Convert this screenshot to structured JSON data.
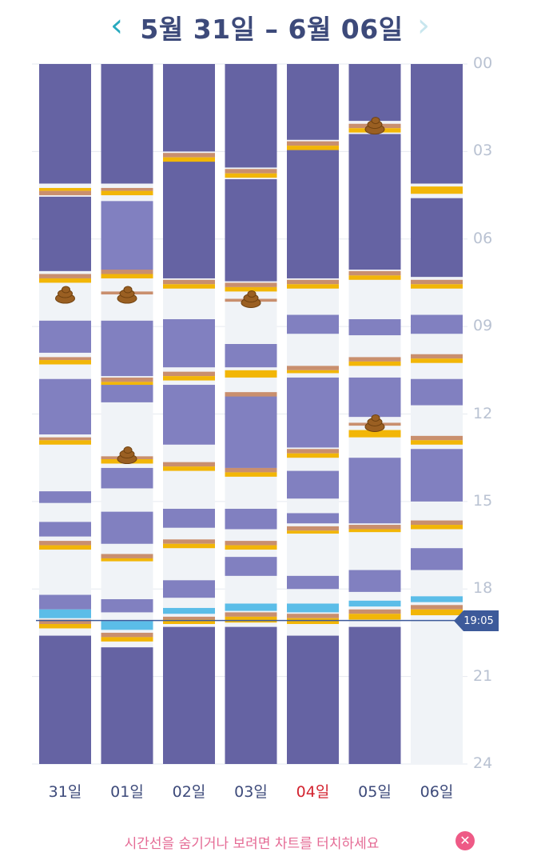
{
  "header": {
    "prev_icon": "chevron-left-icon",
    "next_icon": "chevron-right-icon",
    "title": "5월 31일 – 6월 06일"
  },
  "colors": {
    "sleep": "#6563a3",
    "nap": "#8180c0",
    "awake": "#f0f3f7",
    "feed_orange": "#f2b607",
    "feed_tan": "#c98f6e",
    "diaper_blue": "#5bbde8",
    "now_line": "#3d5a9a"
  },
  "footer": {
    "hint": "시간선을 숨기거나 보려면 차트를 터치하세요",
    "close_icon": "close-icon"
  },
  "now_label": "19:05",
  "chart_data": {
    "type": "timeline",
    "y_unit": "hour",
    "ylim": [
      0,
      24
    ],
    "y_ticks": [
      "00",
      "03",
      "06",
      "09",
      "12",
      "15",
      "18",
      "21",
      "24"
    ],
    "now_hour": 19.08,
    "poop_icon": "poop-icon",
    "days": [
      {
        "label": "31일",
        "highlight": false,
        "sleeps": [
          [
            0,
            4.1
          ],
          [
            4.55,
            7.1
          ],
          [
            8.8,
            9.9
          ],
          [
            10.8,
            12.7
          ],
          [
            14.65,
            15.05
          ],
          [
            15.7,
            16.2
          ],
          [
            18.2,
            18.7
          ],
          [
            19.6,
            24
          ]
        ],
        "feeds": [
          [
            4.25,
            4.35,
            "o"
          ],
          [
            4.35,
            4.5,
            "t"
          ],
          [
            7.2,
            7.35,
            "t"
          ],
          [
            7.35,
            7.5,
            "o"
          ],
          [
            10.05,
            10.15,
            "t"
          ],
          [
            10.15,
            10.3,
            "o"
          ],
          [
            12.8,
            12.9,
            "t"
          ],
          [
            12.9,
            13.05,
            "o"
          ],
          [
            16.35,
            16.5,
            "t"
          ],
          [
            16.5,
            16.65,
            "o"
          ],
          [
            18.7,
            19.0,
            "d"
          ],
          [
            19.05,
            19.2,
            "t"
          ],
          [
            19.2,
            19.35,
            "o"
          ]
        ],
        "poops": [
          7.9
        ]
      },
      {
        "label": "01일",
        "highlight": false,
        "sleeps": [
          [
            0,
            4.1
          ],
          [
            4.7,
            7.1
          ],
          [
            8.8,
            10.7
          ],
          [
            11.0,
            11.6
          ],
          [
            13.85,
            14.55
          ],
          [
            15.35,
            16.45
          ],
          [
            18.35,
            18.8
          ],
          [
            20.0,
            24
          ]
        ],
        "feeds": [
          [
            4.25,
            4.35,
            "t"
          ],
          [
            4.35,
            4.5,
            "o"
          ],
          [
            7.05,
            7.2,
            "t"
          ],
          [
            7.2,
            7.35,
            "o"
          ],
          [
            7.8,
            7.9,
            "t"
          ],
          [
            10.75,
            10.9,
            "t"
          ],
          [
            10.9,
            11.0,
            "o"
          ],
          [
            13.45,
            13.55,
            "t"
          ],
          [
            13.55,
            13.7,
            "o"
          ],
          [
            16.8,
            16.95,
            "t"
          ],
          [
            16.95,
            17.05,
            "o"
          ],
          [
            19.1,
            19.4,
            "d"
          ],
          [
            19.5,
            19.65,
            "t"
          ],
          [
            19.65,
            19.8,
            "o"
          ]
        ],
        "poops": [
          13.4,
          7.9
        ]
      },
      {
        "label": "02일",
        "highlight": false,
        "sleeps": [
          [
            0,
            3.0
          ],
          [
            3.3,
            7.35
          ],
          [
            8.75,
            10.4
          ],
          [
            11.0,
            13.05
          ],
          [
            15.25,
            15.9
          ],
          [
            17.7,
            18.3
          ],
          [
            19.3,
            24
          ]
        ],
        "feeds": [
          [
            3.05,
            3.2,
            "t"
          ],
          [
            3.2,
            3.35,
            "o"
          ],
          [
            7.4,
            7.55,
            "t"
          ],
          [
            7.55,
            7.7,
            "o"
          ],
          [
            10.55,
            10.7,
            "t"
          ],
          [
            10.7,
            10.85,
            "o"
          ],
          [
            13.65,
            13.8,
            "t"
          ],
          [
            13.8,
            13.95,
            "o"
          ],
          [
            16.3,
            16.45,
            "t"
          ],
          [
            16.45,
            16.6,
            "o"
          ],
          [
            18.65,
            18.85,
            "d"
          ],
          [
            18.95,
            19.05,
            "t"
          ],
          [
            19.05,
            19.2,
            "o"
          ]
        ],
        "poops": []
      },
      {
        "label": "03일",
        "highlight": false,
        "sleeps": [
          [
            0,
            3.55
          ],
          [
            3.95,
            7.45
          ],
          [
            9.6,
            10.4
          ],
          [
            11.3,
            13.85
          ],
          [
            15.25,
            15.95
          ],
          [
            16.9,
            17.55
          ],
          [
            19.3,
            24
          ]
        ],
        "feeds": [
          [
            3.6,
            3.75,
            "t"
          ],
          [
            3.75,
            3.9,
            "o"
          ],
          [
            7.5,
            7.65,
            "t"
          ],
          [
            7.65,
            7.8,
            "o"
          ],
          [
            8.05,
            8.15,
            "t"
          ],
          [
            10.5,
            10.75,
            "o"
          ],
          [
            11.25,
            11.4,
            "t"
          ],
          [
            13.85,
            14.0,
            "t"
          ],
          [
            14.0,
            14.15,
            "o"
          ],
          [
            16.35,
            16.5,
            "t"
          ],
          [
            16.5,
            16.65,
            "o"
          ],
          [
            18.5,
            18.75,
            "d"
          ],
          [
            18.8,
            18.95,
            "t"
          ],
          [
            18.95,
            19.15,
            "o"
          ]
        ],
        "poops": [
          8.05
        ]
      },
      {
        "label": "04일",
        "highlight": true,
        "sleeps": [
          [
            0,
            2.6
          ],
          [
            2.95,
            7.35
          ],
          [
            8.6,
            9.25
          ],
          [
            10.75,
            13.15
          ],
          [
            13.95,
            14.9
          ],
          [
            15.4,
            15.75
          ],
          [
            17.55,
            18.0
          ],
          [
            19.6,
            24
          ]
        ],
        "feeds": [
          [
            2.65,
            2.8,
            "t"
          ],
          [
            2.8,
            2.95,
            "o"
          ],
          [
            7.4,
            7.55,
            "t"
          ],
          [
            7.55,
            7.7,
            "o"
          ],
          [
            10.35,
            10.5,
            "t"
          ],
          [
            10.5,
            10.6,
            "o"
          ],
          [
            13.2,
            13.35,
            "t"
          ],
          [
            13.35,
            13.5,
            "o"
          ],
          [
            15.85,
            16.0,
            "t"
          ],
          [
            16.0,
            16.1,
            "o"
          ],
          [
            18.5,
            18.8,
            "d"
          ],
          [
            18.85,
            19.0,
            "t"
          ],
          [
            19.0,
            19.2,
            "o"
          ]
        ],
        "poops": []
      },
      {
        "label": "05일",
        "highlight": false,
        "sleeps": [
          [
            0,
            1.95
          ],
          [
            2.4,
            7.05
          ],
          [
            8.75,
            9.3
          ],
          [
            10.75,
            12.1
          ],
          [
            13.5,
            15.75
          ],
          [
            17.35,
            18.1
          ],
          [
            19.3,
            24
          ]
        ],
        "feeds": [
          [
            2.05,
            2.2,
            "t"
          ],
          [
            2.2,
            2.35,
            "o"
          ],
          [
            7.1,
            7.25,
            "t"
          ],
          [
            7.25,
            7.4,
            "o"
          ],
          [
            10.05,
            10.2,
            "t"
          ],
          [
            10.2,
            10.35,
            "o"
          ],
          [
            12.3,
            12.4,
            "t"
          ],
          [
            12.55,
            12.8,
            "o"
          ],
          [
            15.8,
            15.95,
            "t"
          ],
          [
            15.95,
            16.05,
            "o"
          ],
          [
            18.4,
            18.6,
            "d"
          ],
          [
            18.7,
            18.85,
            "t"
          ],
          [
            18.85,
            19.05,
            "o"
          ]
        ],
        "poops": [
          12.3,
          2.1
        ]
      },
      {
        "label": "06일",
        "highlight": false,
        "sleeps": [
          [
            0,
            4.1
          ],
          [
            4.6,
            7.3
          ],
          [
            8.6,
            9.25
          ],
          [
            10.8,
            11.7
          ],
          [
            13.2,
            15.0
          ],
          [
            16.6,
            17.35
          ]
        ],
        "feeds": [
          [
            4.2,
            4.45,
            "o"
          ],
          [
            7.4,
            7.55,
            "t"
          ],
          [
            7.55,
            7.7,
            "o"
          ],
          [
            9.95,
            10.1,
            "t"
          ],
          [
            10.1,
            10.25,
            "o"
          ],
          [
            12.75,
            12.9,
            "t"
          ],
          [
            12.9,
            13.05,
            "o"
          ],
          [
            15.65,
            15.8,
            "t"
          ],
          [
            15.8,
            15.95,
            "o"
          ],
          [
            18.25,
            18.45,
            "d"
          ],
          [
            18.55,
            18.7,
            "t"
          ],
          [
            18.7,
            18.9,
            "o"
          ]
        ],
        "poops": []
      }
    ]
  }
}
